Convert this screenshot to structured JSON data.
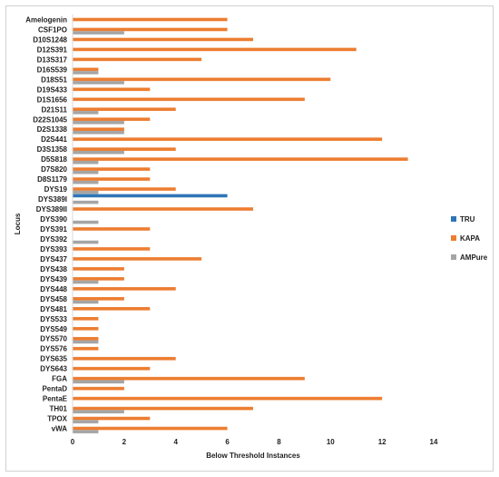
{
  "chart_data": {
    "type": "bar",
    "orientation": "horizontal",
    "xlabel": "Below Threshold Instances",
    "ylabel": "Locus",
    "xlim": [
      0,
      14
    ],
    "xticks": [
      "0",
      "2",
      "4",
      "6",
      "8",
      "10",
      "12",
      "14"
    ],
    "grid": false,
    "legend_position": "right",
    "categories": [
      "Amelogenin",
      "CSF1PO",
      "D10S1248",
      "D12S391",
      "D13S317",
      "D16S539",
      "D18S51",
      "D19S433",
      "D1S1656",
      "D21S11",
      "D22S1045",
      "D2S1338",
      "D2S441",
      "D3S1358",
      "D5S818",
      "D7S820",
      "D8S1179",
      "DYS19",
      "DYS389I",
      "DYS389II",
      "DYS390",
      "DYS391",
      "DYS392",
      "DYS393",
      "DYS437",
      "DYS438",
      "DYS439",
      "DYS448",
      "DYS458",
      "DYS481",
      "DYS533",
      "DYS549",
      "DYS570",
      "DYS576",
      "DYS635",
      "DYS643",
      "FGA",
      "PentaD",
      "PentaE",
      "TH01",
      "TPOX",
      "vWA"
    ],
    "series": [
      {
        "name": "TRU",
        "color": "#2e75b6",
        "values": [
          0,
          0,
          0,
          0,
          0,
          0,
          0,
          0,
          0,
          0,
          0,
          0,
          0,
          0,
          0,
          0,
          0,
          0,
          6,
          0,
          0,
          0,
          0,
          0,
          0,
          0,
          0,
          0,
          0,
          0,
          0,
          0,
          0,
          0,
          0,
          0,
          0,
          0,
          0,
          0,
          0,
          0
        ]
      },
      {
        "name": "KAPA",
        "color": "#ed7d31",
        "values": [
          6,
          6,
          7,
          11,
          5,
          1,
          10,
          3,
          9,
          4,
          3,
          2,
          12,
          4,
          13,
          3,
          3,
          4,
          0,
          7,
          0,
          3,
          0,
          3,
          5,
          2,
          2,
          4,
          2,
          3,
          1,
          1,
          1,
          1,
          4,
          3,
          9,
          2,
          12,
          7,
          3,
          6
        ]
      },
      {
        "name": "AMPure",
        "color": "#a5a5a5",
        "values": [
          0,
          2,
          0,
          0,
          0,
          1,
          2,
          0,
          0,
          1,
          2,
          2,
          0,
          2,
          1,
          1,
          1,
          1,
          1,
          0,
          1,
          0,
          1,
          0,
          0,
          0,
          1,
          0,
          1,
          0,
          0,
          0,
          1,
          0,
          0,
          0,
          2,
          0,
          0,
          2,
          1,
          1
        ]
      }
    ]
  }
}
